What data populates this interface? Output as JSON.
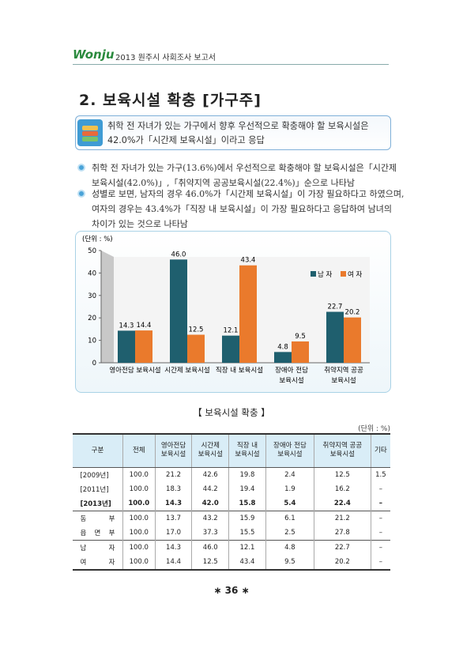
{
  "header": {
    "logo": "Wonju",
    "report": "2013 원주시 사회조사 보고서"
  },
  "title": "2. 보육시설 확충 [가구주]",
  "summary": [
    "취학 전 자녀가 있는 가구에서 향후 우선적으로 확충해야 할 보육시설은",
    "42.0%가「시간제 보육시설」이라고 응답"
  ],
  "bullets": [
    [
      "취학 전 자녀가 있는 가구(13.6%)에서 우선적으로 확충해야 할 보육시설은「시간제",
      "보육시설(42.0%)」,「취약지역 공공보육시설(22.4%)」순으로 나타남"
    ],
    [
      "성별로 보면, 남자의 경우 46.0%가「시간제 보육시설」이 가장 필요하다고 하였으며,",
      "여자의 경우는 43.4%가「직장 내 보육시설」이 가장 필요하다고 응답하여 남녀의",
      "차이가 있는 것으로 나타남"
    ]
  ],
  "chart_data": {
    "type": "bar",
    "unit": "(단위 : %)",
    "categories": [
      [
        "영아전담 보육시설"
      ],
      [
        "시간제 보육시설"
      ],
      [
        "직장 내 보육시설"
      ],
      [
        "장애아 전담",
        "보육시설"
      ],
      [
        "취약지역 공공",
        "보육시설"
      ]
    ],
    "series": [
      {
        "name": "남 자",
        "color": "#1f5f6e",
        "values": [
          14.3,
          46.0,
          12.1,
          4.8,
          22.7
        ],
        "value_labels": [
          "14.3",
          "46.0",
          "12.1",
          "4.8",
          "22.7"
        ]
      },
      {
        "name": "여 자",
        "color": "#ea7a2c",
        "values": [
          14.4,
          12.5,
          43.4,
          9.5,
          20.2
        ],
        "value_labels": [
          "14.4",
          "12.5",
          "43.4",
          "9.5",
          "20.2"
        ]
      }
    ],
    "ylim": [
      0,
      50
    ],
    "yticks": [
      0,
      10,
      20,
      30,
      40,
      50
    ],
    "legend": "upper right"
  },
  "table": {
    "caption": "【 보육시설 확충 】",
    "unit": "(단위 : %)",
    "header": [
      [
        "구분"
      ],
      [
        "전체"
      ],
      [
        "영아전담",
        "보육시설"
      ],
      [
        "시간제",
        "보육시설"
      ],
      [
        "직장 내",
        "보육시설"
      ],
      [
        "장애아 전담",
        "보육시설"
      ],
      [
        "취약지역 공공",
        "보육시설"
      ],
      [
        "기타"
      ]
    ],
    "rows": [
      [
        "[2009년]",
        "100.0",
        "21.2",
        "42.6",
        "19.8",
        "2.4",
        "12.5",
        "1.5"
      ],
      [
        "[2011년]",
        "100.0",
        "18.3",
        "44.2",
        "19.4",
        "1.9",
        "16.2",
        "–"
      ],
      [
        "[2013년]",
        "100.0",
        "14.3",
        "42.0",
        "15.8",
        "5.4",
        "22.4",
        "–"
      ],
      [
        "동 부",
        "100.0",
        "13.7",
        "43.2",
        "15.9",
        "6.1",
        "21.2",
        "–"
      ],
      [
        "읍 면 부",
        "100.0",
        "17.0",
        "37.3",
        "15.5",
        "2.5",
        "27.8",
        "–"
      ],
      [
        "남 자",
        "100.0",
        "14.3",
        "46.0",
        "12.1",
        "4.8",
        "22.7",
        "–"
      ],
      [
        "여 자",
        "100.0",
        "14.4",
        "12.5",
        "43.4",
        "9.5",
        "20.2",
        "–"
      ]
    ]
  },
  "page": "∗ 36 ∗"
}
